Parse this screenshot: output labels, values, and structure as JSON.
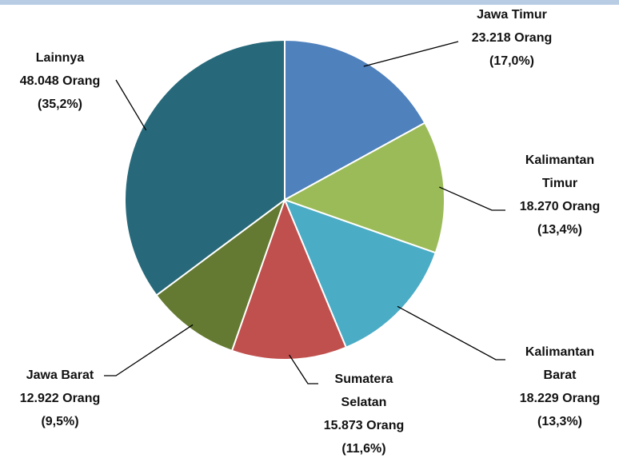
{
  "chart_data": {
    "type": "pie",
    "categories": [
      "Jawa Timur",
      "Kalimantan Timur",
      "Kalimantan Barat",
      "Sumatera Selatan",
      "Jawa Barat",
      "Lainnya"
    ],
    "values": [
      23218,
      18270,
      18229,
      15873,
      12922,
      48048
    ],
    "value_labels": [
      "23.218 Orang",
      "18.270 Orang",
      "18.229 Orang",
      "15.873 Orang",
      "12.922 Orang",
      "48.048 Orang"
    ],
    "percent_labels": [
      "(17,0%)",
      "(13,4%)",
      "(13,3%)",
      "(11,6%)",
      "(9,5%)",
      "(35,2%)"
    ],
    "colors": [
      "#4f81bd",
      "#9bbb59",
      "#4bacc6",
      "#c0504d",
      "#647a32",
      "#27697a"
    ]
  }
}
